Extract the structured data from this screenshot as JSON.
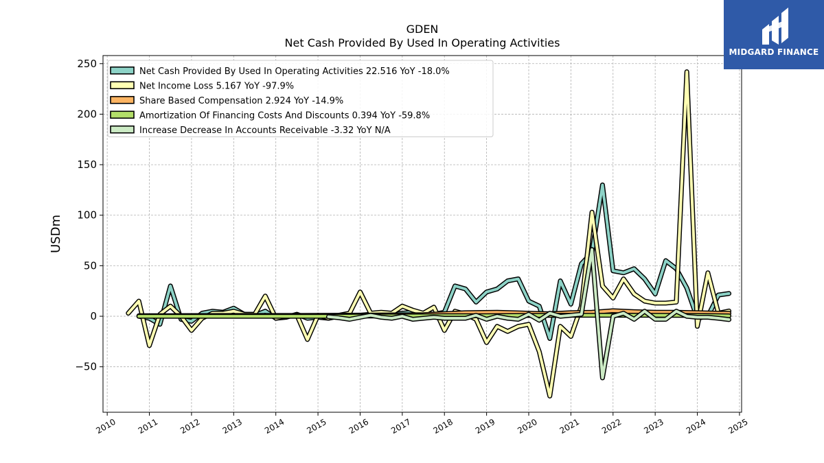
{
  "chart_data": {
    "type": "line",
    "title": "GDEN",
    "subtitle": "Net Cash Provided By Used In Operating Activities",
    "ylabel": "USDm",
    "xlabel": "",
    "xlim": [
      2009.9,
      2025.05
    ],
    "ylim": [
      -95,
      258
    ],
    "yticks": [
      -50,
      0,
      50,
      100,
      150,
      200,
      250
    ],
    "yticklabels": [
      "−50",
      "0",
      "50",
      "100",
      "150",
      "200",
      "250"
    ],
    "xticks": [
      2010,
      2011,
      2012,
      2013,
      2014,
      2015,
      2016,
      2017,
      2018,
      2019,
      2020,
      2021,
      2022,
      2023,
      2024,
      2025
    ],
    "xticklabels": [
      "2010",
      "2011",
      "2012",
      "2013",
      "2014",
      "2015",
      "2016",
      "2017",
      "2018",
      "2019",
      "2020",
      "2021",
      "2022",
      "2023",
      "2024",
      "2025"
    ],
    "grid": true,
    "legend_position": "top-left",
    "series": [
      {
        "name": "Net Cash Provided By Used In Operating Activities",
        "legend": "Net Cash Provided By Used In Operating Activities  22.516 YoY -18.0%",
        "color": "#8dd3c7",
        "points": [
          [
            2010.75,
            0
          ],
          [
            2011.0,
            -2
          ],
          [
            2011.25,
            -8
          ],
          [
            2011.5,
            30
          ],
          [
            2011.75,
            -3
          ],
          [
            2012.0,
            -5
          ],
          [
            2012.25,
            3
          ],
          [
            2012.5,
            5
          ],
          [
            2012.75,
            4
          ],
          [
            2013.0,
            8
          ],
          [
            2013.25,
            2
          ],
          [
            2013.5,
            1
          ],
          [
            2013.75,
            5
          ],
          [
            2014.0,
            -2
          ],
          [
            2014.25,
            -1
          ],
          [
            2014.5,
            2
          ],
          [
            2014.75,
            -2
          ],
          [
            2015.0,
            -1
          ],
          [
            2015.25,
            -2
          ],
          [
            2015.5,
            0
          ],
          [
            2015.75,
            1
          ],
          [
            2016.0,
            1
          ],
          [
            2016.25,
            2
          ],
          [
            2016.5,
            3
          ],
          [
            2016.75,
            2
          ],
          [
            2017.0,
            3
          ],
          [
            2017.25,
            4
          ],
          [
            2017.5,
            3
          ],
          [
            2017.75,
            2
          ],
          [
            2018.0,
            4
          ],
          [
            2018.25,
            30
          ],
          [
            2018.5,
            27
          ],
          [
            2018.75,
            14
          ],
          [
            2019.0,
            24
          ],
          [
            2019.25,
            27
          ],
          [
            2019.5,
            35
          ],
          [
            2019.75,
            37
          ],
          [
            2020.0,
            15
          ],
          [
            2020.25,
            10
          ],
          [
            2020.5,
            -22
          ],
          [
            2020.75,
            35
          ],
          [
            2021.0,
            12
          ],
          [
            2021.25,
            52
          ],
          [
            2021.5,
            63
          ],
          [
            2021.75,
            130
          ],
          [
            2022.0,
            45
          ],
          [
            2022.25,
            43
          ],
          [
            2022.5,
            47
          ],
          [
            2022.75,
            37
          ],
          [
            2023.0,
            22
          ],
          [
            2023.25,
            55
          ],
          [
            2023.5,
            47
          ],
          [
            2023.75,
            28
          ],
          [
            2024.0,
            -2
          ],
          [
            2024.25,
            0
          ],
          [
            2024.5,
            21
          ],
          [
            2024.75,
            22.5
          ]
        ]
      },
      {
        "name": "Net Income Loss",
        "legend": "Net Income Loss  5.167 YoY -97.9%",
        "color": "#ffffb3",
        "points": [
          [
            2010.5,
            3
          ],
          [
            2010.75,
            15
          ],
          [
            2011.0,
            -29
          ],
          [
            2011.25,
            2
          ],
          [
            2011.5,
            10
          ],
          [
            2011.75,
            0
          ],
          [
            2012.0,
            -14
          ],
          [
            2012.25,
            -2
          ],
          [
            2012.5,
            3
          ],
          [
            2012.75,
            3
          ],
          [
            2013.0,
            5
          ],
          [
            2013.25,
            2
          ],
          [
            2013.5,
            2
          ],
          [
            2013.75,
            20
          ],
          [
            2014.0,
            -2
          ],
          [
            2014.25,
            0
          ],
          [
            2014.5,
            1
          ],
          [
            2014.75,
            -23
          ],
          [
            2015.0,
            1
          ],
          [
            2015.25,
            -2
          ],
          [
            2015.5,
            1
          ],
          [
            2015.75,
            3
          ],
          [
            2016.0,
            24
          ],
          [
            2016.25,
            3
          ],
          [
            2016.5,
            4
          ],
          [
            2016.75,
            3
          ],
          [
            2017.0,
            10
          ],
          [
            2017.25,
            6
          ],
          [
            2017.5,
            3
          ],
          [
            2017.75,
            9
          ],
          [
            2018.0,
            -14
          ],
          [
            2018.25,
            5
          ],
          [
            2018.5,
            2
          ],
          [
            2018.75,
            -3
          ],
          [
            2019.0,
            -26
          ],
          [
            2019.25,
            -10
          ],
          [
            2019.5,
            -15
          ],
          [
            2019.75,
            -10
          ],
          [
            2020.0,
            -8
          ],
          [
            2020.25,
            -35
          ],
          [
            2020.5,
            -79
          ],
          [
            2020.75,
            -10
          ],
          [
            2021.0,
            -20
          ],
          [
            2021.25,
            10
          ],
          [
            2021.5,
            103
          ],
          [
            2021.75,
            30
          ],
          [
            2022.0,
            18
          ],
          [
            2022.25,
            37
          ],
          [
            2022.5,
            22
          ],
          [
            2022.75,
            15
          ],
          [
            2023.0,
            13
          ],
          [
            2023.25,
            13
          ],
          [
            2023.5,
            14
          ],
          [
            2023.75,
            242
          ],
          [
            2024.0,
            -10
          ],
          [
            2024.25,
            43
          ],
          [
            2024.5,
            3
          ],
          [
            2024.75,
            5.2
          ]
        ]
      },
      {
        "name": "Share Based Compensation",
        "legend": "Share Based Compensation  2.924 YoY -14.9%",
        "color": "#fdb462",
        "points": [
          [
            2010.75,
            0.5
          ],
          [
            2011.5,
            0.6
          ],
          [
            2012.5,
            0.7
          ],
          [
            2013.5,
            0.8
          ],
          [
            2014.5,
            0.8
          ],
          [
            2015.5,
            1.0
          ],
          [
            2016.5,
            1.2
          ],
          [
            2017.5,
            1.5
          ],
          [
            2018.5,
            3.5
          ],
          [
            2019.25,
            4.0
          ],
          [
            2020.0,
            3.0
          ],
          [
            2020.5,
            2.5
          ],
          [
            2021.0,
            3.5
          ],
          [
            2021.5,
            4.0
          ],
          [
            2022.0,
            5.5
          ],
          [
            2022.5,
            4.5
          ],
          [
            2023.0,
            4.0
          ],
          [
            2023.5,
            4.0
          ],
          [
            2024.0,
            3.5
          ],
          [
            2024.5,
            3.0
          ],
          [
            2024.75,
            2.9
          ]
        ]
      },
      {
        "name": "Amortization Of Financing Costs And Discounts",
        "legend": "Amortization Of Financing Costs And Discounts  0.394 YoY -59.8%",
        "color": "#b3de69",
        "points": [
          [
            2010.75,
            0
          ],
          [
            2012.0,
            0
          ],
          [
            2013.0,
            0
          ],
          [
            2014.0,
            0
          ],
          [
            2015.0,
            0
          ],
          [
            2016.0,
            0.2
          ],
          [
            2017.0,
            0.3
          ],
          [
            2018.0,
            0.5
          ],
          [
            2019.0,
            0.6
          ],
          [
            2020.0,
            0.8
          ],
          [
            2021.0,
            1.0
          ],
          [
            2022.0,
            1.0
          ],
          [
            2023.0,
            1.0
          ],
          [
            2024.0,
            0.8
          ],
          [
            2024.75,
            0.4
          ]
        ]
      },
      {
        "name": "Increase Decrease In Accounts Receivable",
        "legend": "Increase Decrease In Accounts Receivable  -3.32 YoY N/A",
        "color": "#ccebc5",
        "points": [
          [
            2015.25,
            -0.5
          ],
          [
            2015.5,
            -1.5
          ],
          [
            2015.75,
            -3
          ],
          [
            2016.0,
            -1
          ],
          [
            2016.25,
            1
          ],
          [
            2016.5,
            -1
          ],
          [
            2016.75,
            -2
          ],
          [
            2017.0,
            0
          ],
          [
            2017.25,
            -3
          ],
          [
            2017.5,
            -2
          ],
          [
            2017.75,
            -1
          ],
          [
            2018.0,
            -2
          ],
          [
            2018.25,
            -2
          ],
          [
            2018.5,
            -2
          ],
          [
            2018.75,
            1
          ],
          [
            2019.0,
            -3
          ],
          [
            2019.25,
            0
          ],
          [
            2019.5,
            -2
          ],
          [
            2019.75,
            -3
          ],
          [
            2020.0,
            2
          ],
          [
            2020.25,
            -4
          ],
          [
            2020.5,
            3
          ],
          [
            2020.75,
            0
          ],
          [
            2021.0,
            1
          ],
          [
            2021.25,
            2
          ],
          [
            2021.5,
            66
          ],
          [
            2021.75,
            -61
          ],
          [
            2022.0,
            0
          ],
          [
            2022.25,
            3
          ],
          [
            2022.5,
            -3
          ],
          [
            2022.75,
            5
          ],
          [
            2023.0,
            -3
          ],
          [
            2023.25,
            -3
          ],
          [
            2023.5,
            5
          ],
          [
            2023.75,
            0
          ],
          [
            2024.0,
            -1
          ],
          [
            2024.25,
            -1
          ],
          [
            2024.5,
            -2
          ],
          [
            2024.75,
            -3.3
          ]
        ]
      }
    ]
  },
  "logo": {
    "text": "MIDGARD FINANCE",
    "background": "#2f5aa8"
  }
}
